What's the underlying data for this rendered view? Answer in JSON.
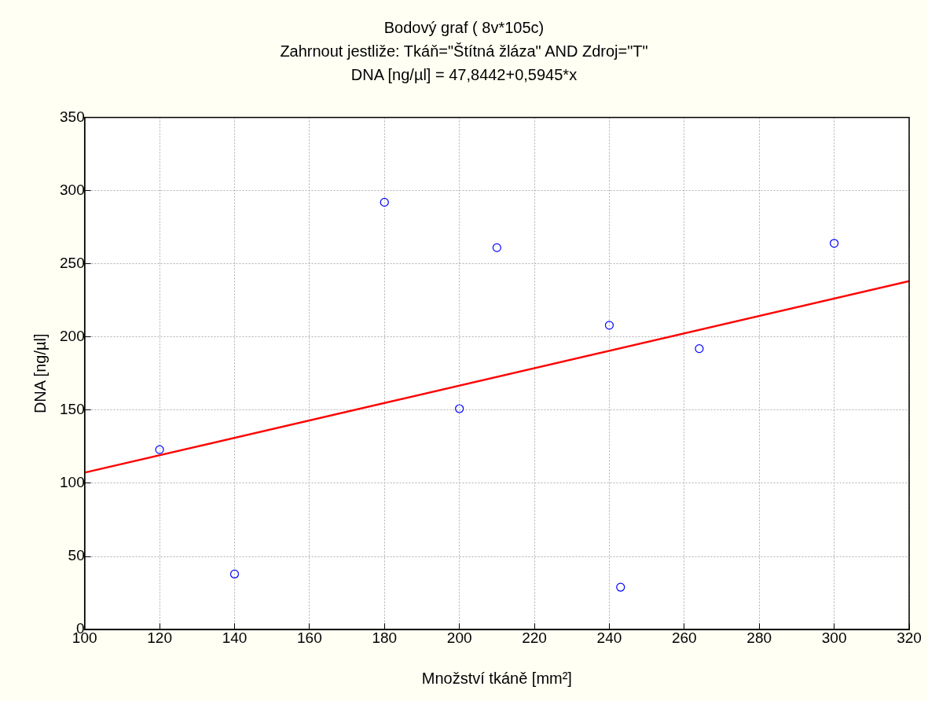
{
  "chart_data": {
    "type": "scatter",
    "title": "Bodový graf ( 8v*105c)",
    "subtitle": "Zahrnout jestliže: Tkáň=\"Štítná žláza\" AND Zdroj=\"T\"",
    "annotations": [
      "DNA [ng/µl] = 47,8442+0,5945*x"
    ],
    "xlabel": "Množství tkáně [mm²]",
    "ylabel": "DNA [ng/µl]",
    "series": [
      {
        "type": "scatter",
        "color": "#0000ff",
        "marker": "circle",
        "x": [
          120,
          140,
          180,
          200,
          210,
          240,
          243,
          264,
          300
        ],
        "values": [
          123,
          38,
          292,
          151,
          261,
          208,
          29,
          192,
          264
        ]
      },
      {
        "type": "line",
        "color": "#ff0000",
        "marker": "none",
        "x": [
          100,
          320
        ],
        "values": [
          107.3,
          238.1
        ]
      }
    ],
    "xlim": [
      100,
      320
    ],
    "xticks": [
      100,
      120,
      140,
      160,
      180,
      200,
      220,
      240,
      260,
      280,
      300,
      320
    ],
    "ylim": [
      0,
      350
    ],
    "yticks": [
      0,
      50,
      100,
      150,
      200,
      250,
      300,
      350
    ],
    "grid": true,
    "legend": false
  }
}
